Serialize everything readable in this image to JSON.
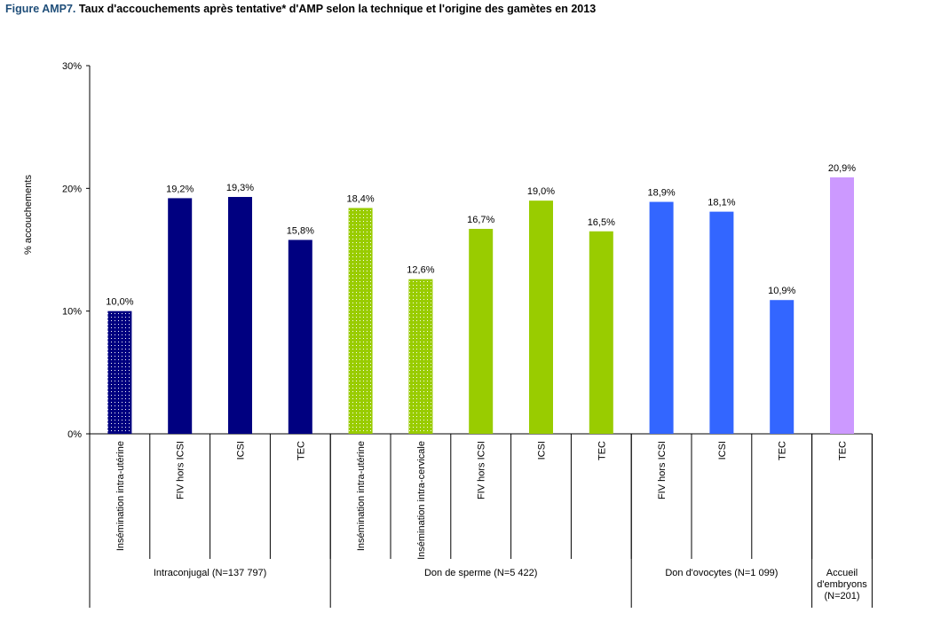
{
  "figure_prefix": "Figure AMP7.",
  "figure_title": "Taux d'accouchements après tentative* d'AMP selon la technique et l'origine des gamètes en 2013",
  "chart_data": {
    "type": "bar",
    "title": "Taux d'accouchements après tentative* d'AMP selon la technique et l'origine des gamètes en 2013",
    "ylabel": "% accouchements",
    "xlabel": "",
    "ylim": [
      0,
      30
    ],
    "yticks": [
      0,
      10,
      20,
      30
    ],
    "ytick_labels": [
      "0%",
      "10%",
      "20%",
      "30%"
    ],
    "grid": false,
    "legend": "none",
    "categories": [
      "Insémination intra-utérine",
      "FIV hors ICSI",
      "ICSI",
      "TEC",
      "Insémination intra-utérine",
      "Insémination intra-cervicale",
      "FIV hors ICSI",
      "ICSI",
      "TEC",
      "FIV hors ICSI",
      "ICSI",
      "TEC",
      "TEC"
    ],
    "values": [
      10.0,
      19.2,
      19.3,
      15.8,
      18.4,
      12.6,
      16.7,
      19.0,
      16.5,
      18.9,
      18.1,
      10.9,
      20.9
    ],
    "value_labels": [
      "10,0%",
      "19,2%",
      "19,3%",
      "15,8%",
      "18,4%",
      "12,6%",
      "16,7%",
      "19,0%",
      "16,5%",
      "18,9%",
      "18,1%",
      "10,9%",
      "20,9%"
    ],
    "bar_group": [
      0,
      0,
      0,
      0,
      1,
      1,
      1,
      1,
      1,
      2,
      2,
      2,
      3
    ],
    "bar_dotted": [
      true,
      false,
      false,
      false,
      true,
      true,
      false,
      false,
      false,
      false,
      false,
      false,
      false
    ],
    "groups": [
      {
        "label": "Intraconjugal (N=137 797)",
        "color": "#000080",
        "count": 4
      },
      {
        "label": "Don de sperme (N=5 422)",
        "color": "#99cc00",
        "count": 5
      },
      {
        "label": "Don d'ovocytes (N=1 099)",
        "color": "#3366ff",
        "count": 3
      },
      {
        "label": "Accueil d'embryons (N=201)",
        "label_lines": [
          "Accueil",
          "d'embryons",
          "(N=201)"
        ],
        "color": "#cc99ff",
        "count": 1
      }
    ]
  }
}
